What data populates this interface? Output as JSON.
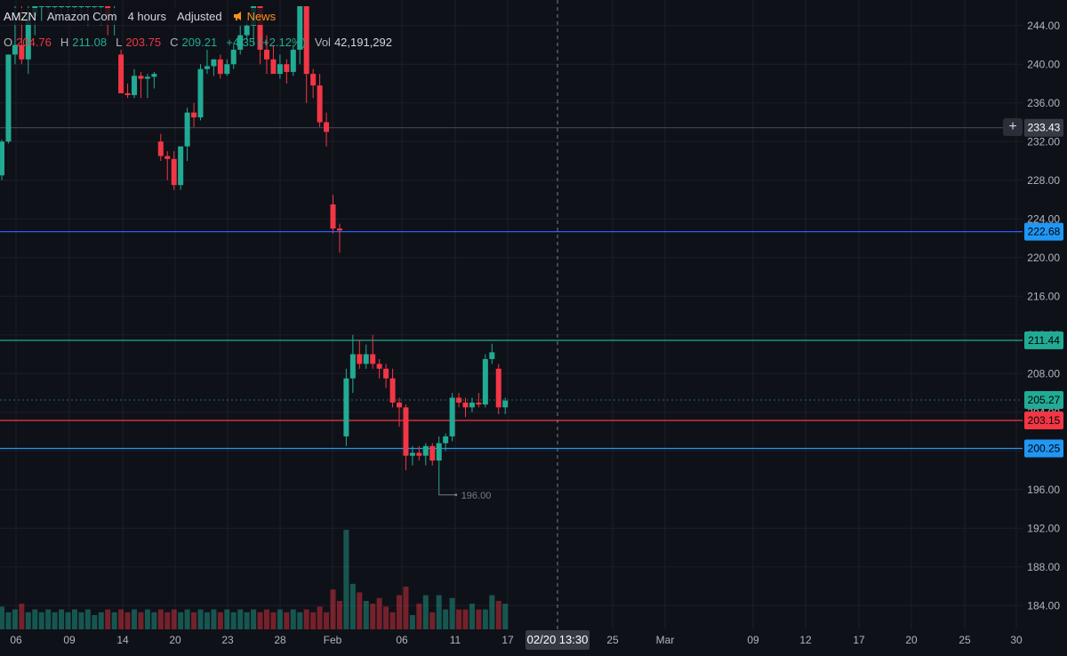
{
  "header": {
    "symbol": "AMZN",
    "name": "Amazon Com",
    "interval": "4 hours",
    "adjustment": "Adjusted",
    "news_label": "News",
    "news_color": "#f7931a"
  },
  "ohlc": {
    "o_label": "O",
    "o": "204.76",
    "h_label": "H",
    "h": "211.08",
    "l_label": "L",
    "l": "203.75",
    "c_label": "C",
    "c": "209.21",
    "change": "+4.35 (+2.12%)",
    "vol_label": "Vol",
    "vol": "42,191,292"
  },
  "colors": {
    "background": "#0f1118",
    "up": "#22ab94",
    "down": "#f23645",
    "grid": "#1c1f2a"
  },
  "chart_data": {
    "type": "candlestick",
    "y_axis": {
      "min": 182.0,
      "max": 246.0,
      "ticks": [
        "244.00",
        "240.00",
        "236.00",
        "232.00",
        "228.00",
        "224.00",
        "220.00",
        "216.00",
        "212.00",
        "208.00",
        "204.00",
        "200.00",
        "196.00",
        "192.00",
        "188.00",
        "184.00"
      ]
    },
    "x_axis": {
      "ticks": [
        "06",
        "09",
        "14",
        "20",
        "23",
        "28",
        "Feb",
        "06",
        "11",
        "17",
        "25",
        "Mar",
        "09",
        "12",
        "17",
        "20",
        "25",
        "30"
      ]
    },
    "crosshair": {
      "label": "02/20 13:30",
      "horizontal_value": 233.43
    },
    "horizontal_lines": [
      {
        "value": 233.43,
        "color": "#434651"
      },
      {
        "value": 222.68,
        "color": "#2962ff"
      },
      {
        "value": 211.44,
        "color": "#22ab94"
      },
      {
        "value": 205.27,
        "color": "#22ab94"
      },
      {
        "value": 203.15,
        "color": "#f23645"
      },
      {
        "value": 200.25,
        "color": "#2196f3"
      }
    ],
    "price_labels": [
      {
        "value": 233.43,
        "text": "233.43",
        "bg": "#363a45",
        "fg": "#ffffff"
      },
      {
        "value": 222.68,
        "text": "222.68",
        "bg": "#2196f3",
        "fg": "#000000"
      },
      {
        "value": 211.44,
        "text": "211.44",
        "bg": "#22ab94",
        "fg": "#000000"
      },
      {
        "value": 205.27,
        "text": "205.27",
        "bg": "#22ab94",
        "fg": "#000000"
      },
      {
        "value": 203.15,
        "text": "203.15",
        "bg": "#f23645",
        "fg": "#000000"
      },
      {
        "value": 200.25,
        "text": "200.25",
        "bg": "#2196f3",
        "fg": "#000000"
      }
    ],
    "annotations": [
      {
        "text": "196.00",
        "value": 196.0
      }
    ],
    "candles": [
      [
        228.5,
        232.2,
        228.0,
        232.0
      ],
      [
        232.0,
        241.0,
        231.8,
        241.0
      ],
      [
        241.0,
        246.0,
        240.0,
        242.0
      ],
      [
        242.0,
        246.0,
        240.0,
        240.5
      ],
      [
        240.5,
        246.0,
        239.0,
        245.0
      ],
      [
        245.0,
        246.0,
        243.0,
        246.0
      ],
      [
        246.0,
        246.0,
        244.5,
        246.0
      ],
      [
        246.0,
        246.0,
        245.0,
        246.0
      ],
      [
        246.0,
        246.0,
        244.5,
        246.0
      ],
      [
        246.0,
        246.0,
        245.0,
        246.0
      ],
      [
        246.0,
        246.0,
        244.5,
        246.0
      ],
      [
        246.0,
        246.0,
        245.0,
        246.0
      ],
      [
        246.0,
        246.0,
        244.5,
        246.0
      ],
      [
        246.0,
        246.0,
        244.0,
        246.0
      ],
      [
        246.0,
        246.0,
        244.5,
        246.0
      ],
      [
        246.0,
        246.0,
        244.0,
        246.0
      ],
      [
        246.0,
        246.0,
        243.0,
        245.0
      ],
      [
        245.0,
        246.0,
        243.0,
        245.0
      ],
      [
        241.0,
        241.5,
        237.0,
        237.0
      ],
      [
        237.0,
        238.0,
        236.5,
        236.8
      ],
      [
        236.8,
        239.5,
        236.5,
        238.8
      ],
      [
        238.8,
        239.2,
        236.5,
        238.5
      ],
      [
        238.5,
        239.0,
        236.5,
        238.7
      ],
      [
        238.7,
        239.2,
        237.5,
        239.0
      ],
      [
        232.0,
        232.8,
        230.0,
        230.5
      ],
      [
        230.5,
        231.0,
        228.0,
        230.2
      ],
      [
        230.2,
        231.0,
        227.0,
        227.5
      ],
      [
        227.5,
        231.5,
        227.0,
        231.5
      ],
      [
        231.5,
        235.5,
        230.0,
        235.0
      ],
      [
        235.0,
        236.0,
        233.5,
        234.5
      ],
      [
        234.5,
        240.0,
        234.2,
        239.5
      ],
      [
        239.5,
        241.5,
        239.0,
        239.8
      ],
      [
        239.8,
        240.5,
        238.8,
        240.5
      ],
      [
        240.5,
        241.0,
        238.5,
        239.0
      ],
      [
        239.0,
        240.5,
        238.8,
        240.0
      ],
      [
        240.0,
        242.0,
        239.5,
        241.5
      ],
      [
        241.5,
        244.0,
        241.0,
        243.0
      ],
      [
        243.0,
        244.5,
        242.5,
        244.0
      ],
      [
        244.0,
        246.0,
        242.0,
        246.0
      ],
      [
        246.0,
        246.0,
        240.0,
        241.5
      ],
      [
        241.5,
        243.0,
        239.0,
        240.5
      ],
      [
        240.5,
        242.0,
        239.5,
        239.0
      ],
      [
        239.0,
        241.0,
        238.5,
        240.0
      ],
      [
        240.0,
        240.5,
        238.0,
        239.2
      ],
      [
        239.2,
        242.0,
        238.8,
        241.5
      ],
      [
        241.5,
        246.0,
        240.0,
        246.0
      ],
      [
        246.0,
        246.0,
        236.0,
        239.0
      ],
      [
        239.0,
        239.5,
        236.5,
        237.8
      ],
      [
        237.8,
        239.0,
        233.5,
        234.0
      ],
      [
        234.0,
        235.0,
        231.5,
        233.0
      ],
      [
        225.5,
        226.5,
        222.5,
        223.0
      ],
      [
        223.0,
        223.5,
        220.5,
        222.8
      ],
      [
        201.5,
        208.5,
        200.5,
        207.5
      ],
      [
        207.5,
        212.0,
        206.0,
        210.0
      ],
      [
        210.0,
        211.5,
        208.5,
        209.0
      ],
      [
        209.0,
        211.0,
        208.5,
        210.0
      ],
      [
        210.0,
        212.0,
        208.5,
        209.0
      ],
      [
        209.0,
        209.5,
        207.5,
        208.5
      ],
      [
        208.5,
        209.0,
        206.5,
        207.5
      ],
      [
        207.5,
        208.5,
        204.5,
        205.0
      ],
      [
        205.0,
        205.5,
        202.5,
        204.5
      ],
      [
        204.5,
        204.8,
        198.0,
        199.5
      ],
      [
        199.5,
        200.5,
        198.5,
        199.8
      ],
      [
        199.8,
        200.5,
        199.0,
        199.5
      ],
      [
        199.5,
        200.8,
        198.5,
        200.5
      ],
      [
        200.5,
        200.8,
        198.5,
        199.0
      ],
      [
        199.0,
        201.5,
        196.0,
        200.8
      ],
      [
        200.8,
        201.8,
        200.0,
        201.5
      ],
      [
        201.5,
        206.0,
        201.0,
        205.5
      ],
      [
        205.5,
        206.0,
        204.5,
        205.0
      ],
      [
        205.0,
        205.5,
        203.5,
        204.5
      ],
      [
        204.5,
        205.5,
        204.0,
        205.0
      ],
      [
        205.0,
        206.0,
        204.5,
        204.8
      ],
      [
        204.8,
        210.0,
        204.5,
        209.5
      ],
      [
        209.5,
        211.08,
        209.0,
        210.2
      ],
      [
        208.5,
        209.0,
        203.8,
        204.5
      ],
      [
        204.5,
        205.5,
        203.8,
        205.2
      ]
    ],
    "volume": [
      8,
      6,
      7,
      9,
      6,
      7,
      6,
      7,
      6,
      7,
      6,
      7,
      6,
      7,
      5,
      6,
      7,
      6,
      7,
      6,
      7,
      6,
      7,
      6,
      7,
      6,
      7,
      6,
      7,
      6,
      7,
      6,
      7,
      6,
      7,
      6,
      7,
      6,
      7,
      6,
      7,
      6,
      7,
      6,
      7,
      6,
      7,
      6,
      8,
      6,
      14,
      10,
      35,
      16,
      13,
      10,
      9,
      11,
      8,
      6,
      12,
      15,
      5,
      9,
      12,
      6,
      12,
      7,
      11,
      7,
      7,
      9,
      7,
      7,
      12,
      10,
      9
    ]
  }
}
